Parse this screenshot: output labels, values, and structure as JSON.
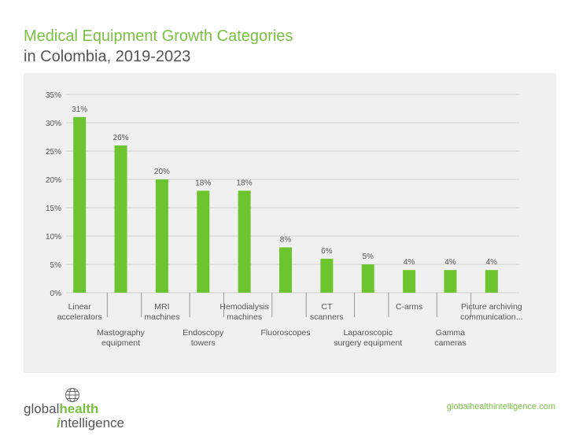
{
  "header": {
    "title": "Medical Equipment Growth Categories",
    "subtitle": "in Colombia, 2019-2023"
  },
  "footer": {
    "logo_part1": "global",
    "logo_part2": "health",
    "logo_part3_i": "i",
    "logo_part3_rest": "ntelligence",
    "url": "globalhealthintelligence.com"
  },
  "colors": {
    "bar": "#6cc42e",
    "accent": "#7ac142",
    "panel": "#f0f0f0",
    "grid": "#d0d0d0"
  },
  "icons": {
    "logo": "globe-icon"
  },
  "chart_data": {
    "type": "bar",
    "categories": [
      [
        "Linear",
        "accelerators"
      ],
      [
        "Mastography",
        "equipment"
      ],
      [
        "MRI",
        "machines"
      ],
      [
        "Endoscopy",
        "towers"
      ],
      [
        "Hemodialysis",
        "machines"
      ],
      [
        "Fluoroscopes"
      ],
      [
        "CT",
        "scanners"
      ],
      [
        "Laparoscopic",
        "surgery equipment"
      ],
      [
        "C-arms"
      ],
      [
        "Gamma",
        "cameras"
      ],
      [
        "Picture archiving",
        "communication..."
      ]
    ],
    "values": [
      31,
      26,
      20,
      18,
      18,
      8,
      6,
      5,
      4,
      4,
      4
    ],
    "data_labels": [
      "31%",
      "26%",
      "20%",
      "18%",
      "18%",
      "8%",
      "6%",
      "5%",
      "4%",
      "4%",
      "4%"
    ],
    "y_ticks": [
      "0%",
      "5%",
      "10%",
      "15%",
      "20%",
      "25%",
      "30%",
      "35%"
    ],
    "ylim": [
      0,
      35
    ],
    "grid": true
  }
}
